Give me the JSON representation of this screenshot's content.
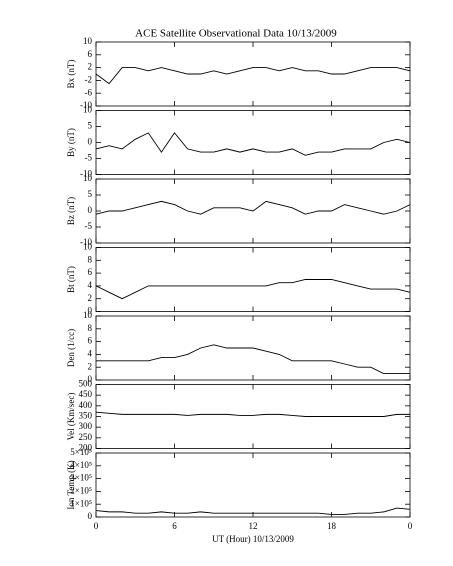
{
  "chart_data": [
    {
      "type": "line",
      "title": "ACE Satellite Observational Data   10/13/2009",
      "ylabel": "Bx (nT)",
      "color": "#000000",
      "x": [
        0,
        1,
        2,
        3,
        4,
        5,
        6,
        7,
        8,
        9,
        10,
        11,
        12,
        13,
        14,
        15,
        16,
        17,
        18,
        19,
        20,
        21,
        22,
        23,
        24
      ],
      "values": [
        0,
        -3,
        2,
        2,
        1,
        2,
        1,
        0,
        0,
        1,
        0,
        1,
        2,
        2,
        1,
        2,
        1,
        1,
        0,
        0,
        1,
        2,
        2,
        2,
        1
      ],
      "xlim": [
        0,
        24
      ],
      "xticks": [
        0,
        6,
        12,
        18,
        24
      ],
      "ylim": [
        -10,
        10
      ],
      "yticks": [
        -10,
        -6,
        -2,
        2,
        6,
        10
      ]
    },
    {
      "type": "line",
      "ylabel": "By (nT)",
      "color": "#000000",
      "x": [
        0,
        1,
        2,
        3,
        4,
        5,
        6,
        7,
        8,
        9,
        10,
        11,
        12,
        13,
        14,
        15,
        16,
        17,
        18,
        19,
        20,
        21,
        22,
        23,
        24
      ],
      "values": [
        -2,
        -1,
        -2,
        1,
        3,
        -3,
        3,
        -2,
        -3,
        -3,
        -2,
        -3,
        -2,
        -3,
        -3,
        -2,
        -4,
        -3,
        -3,
        -2,
        -2,
        -2,
        0,
        1,
        0
      ],
      "xlim": [
        0,
        24
      ],
      "xticks": [
        0,
        6,
        12,
        18,
        24
      ],
      "ylim": [
        -10,
        10
      ],
      "yticks": [
        -10,
        -5,
        0,
        5,
        10
      ]
    },
    {
      "type": "line",
      "ylabel": "Bz (nT)",
      "color": "#000000",
      "x": [
        0,
        1,
        2,
        3,
        4,
        5,
        6,
        7,
        8,
        9,
        10,
        11,
        12,
        13,
        14,
        15,
        16,
        17,
        18,
        19,
        20,
        21,
        22,
        23,
        24
      ],
      "values": [
        -1,
        0,
        0,
        1,
        2,
        3,
        2,
        0,
        -1,
        1,
        1,
        1,
        0,
        3,
        2,
        1,
        -1,
        0,
        0,
        2,
        1,
        0,
        -1,
        0,
        2
      ],
      "xlim": [
        0,
        24
      ],
      "xticks": [
        0,
        6,
        12,
        18,
        24
      ],
      "ylim": [
        -10,
        10
      ],
      "yticks": [
        -10,
        -5,
        0,
        5,
        10
      ]
    },
    {
      "type": "line",
      "ylabel": "Bt (nT)",
      "color": "#000000",
      "x": [
        0,
        1,
        2,
        3,
        4,
        5,
        6,
        7,
        8,
        9,
        10,
        11,
        12,
        13,
        14,
        15,
        16,
        17,
        18,
        19,
        20,
        21,
        22,
        23,
        24
      ],
      "values": [
        4,
        3,
        2,
        3,
        4,
        4,
        4,
        4,
        4,
        4,
        4,
        4,
        4,
        4,
        4.5,
        4.5,
        5,
        5,
        5,
        4.5,
        4,
        3.5,
        3.5,
        3.5,
        3
      ],
      "xlim": [
        0,
        24
      ],
      "xticks": [
        0,
        6,
        12,
        18,
        24
      ],
      "ylim": [
        0,
        10
      ],
      "yticks": [
        0,
        2,
        4,
        6,
        8,
        10
      ]
    },
    {
      "type": "line",
      "ylabel": "Den (1/cc)",
      "color": "#000000",
      "x": [
        0,
        1,
        2,
        3,
        4,
        5,
        6,
        7,
        8,
        9,
        10,
        11,
        12,
        13,
        14,
        15,
        16,
        17,
        18,
        19,
        20,
        21,
        22,
        23,
        24
      ],
      "values": [
        3,
        3,
        3,
        3,
        3,
        3.5,
        3.5,
        4,
        5,
        5.5,
        5,
        5,
        5,
        4.5,
        4,
        3,
        3,
        3,
        3,
        2.5,
        2,
        2,
        1,
        1,
        1
      ],
      "xlim": [
        0,
        24
      ],
      "xticks": [
        0,
        6,
        12,
        18,
        24
      ],
      "ylim": [
        0,
        10
      ],
      "yticks": [
        0,
        2,
        4,
        6,
        8,
        10
      ]
    },
    {
      "type": "line",
      "ylabel": "Vel (Km/sec)",
      "color": "#000000",
      "x": [
        0,
        1,
        2,
        3,
        4,
        5,
        6,
        7,
        8,
        9,
        10,
        11,
        12,
        13,
        14,
        15,
        16,
        17,
        18,
        19,
        20,
        21,
        22,
        23,
        24
      ],
      "values": [
        370,
        365,
        360,
        360,
        360,
        360,
        360,
        355,
        360,
        360,
        360,
        355,
        355,
        360,
        360,
        355,
        350,
        350,
        350,
        350,
        350,
        350,
        350,
        360,
        360
      ],
      "xlim": [
        0,
        24
      ],
      "xticks": [
        0,
        6,
        12,
        18,
        24
      ],
      "ylim": [
        200,
        500
      ],
      "yticks": [
        200,
        250,
        300,
        350,
        400,
        450,
        500
      ]
    },
    {
      "type": "line",
      "ylabel": "Ion Temp (K)",
      "xlabel": "UT (Hour)  10/13/2009",
      "color": "#000000",
      "x": [
        0,
        1,
        2,
        3,
        4,
        5,
        6,
        7,
        8,
        9,
        10,
        11,
        12,
        13,
        14,
        15,
        16,
        17,
        18,
        19,
        20,
        21,
        22,
        23,
        24
      ],
      "values": [
        50000,
        40000,
        40000,
        30000,
        30000,
        40000,
        30000,
        30000,
        40000,
        30000,
        30000,
        30000,
        30000,
        30000,
        30000,
        30000,
        30000,
        30000,
        20000,
        20000,
        30000,
        30000,
        40000,
        70000,
        60000
      ],
      "xlim": [
        0,
        24
      ],
      "xticks": [
        0,
        6,
        12,
        18,
        {
          "value": 24,
          "label": "0"
        }
      ],
      "ylim": [
        0,
        500000
      ],
      "yticks": [
        0,
        {
          "value": 100000,
          "label": "1×10⁵"
        },
        {
          "value": 200000,
          "label": "2×10⁵"
        },
        {
          "value": 300000,
          "label": "3×10⁵"
        },
        {
          "value": 400000,
          "label": "4×10⁵"
        },
        {
          "value": 500000,
          "label": "5×10⁵"
        }
      ]
    }
  ]
}
